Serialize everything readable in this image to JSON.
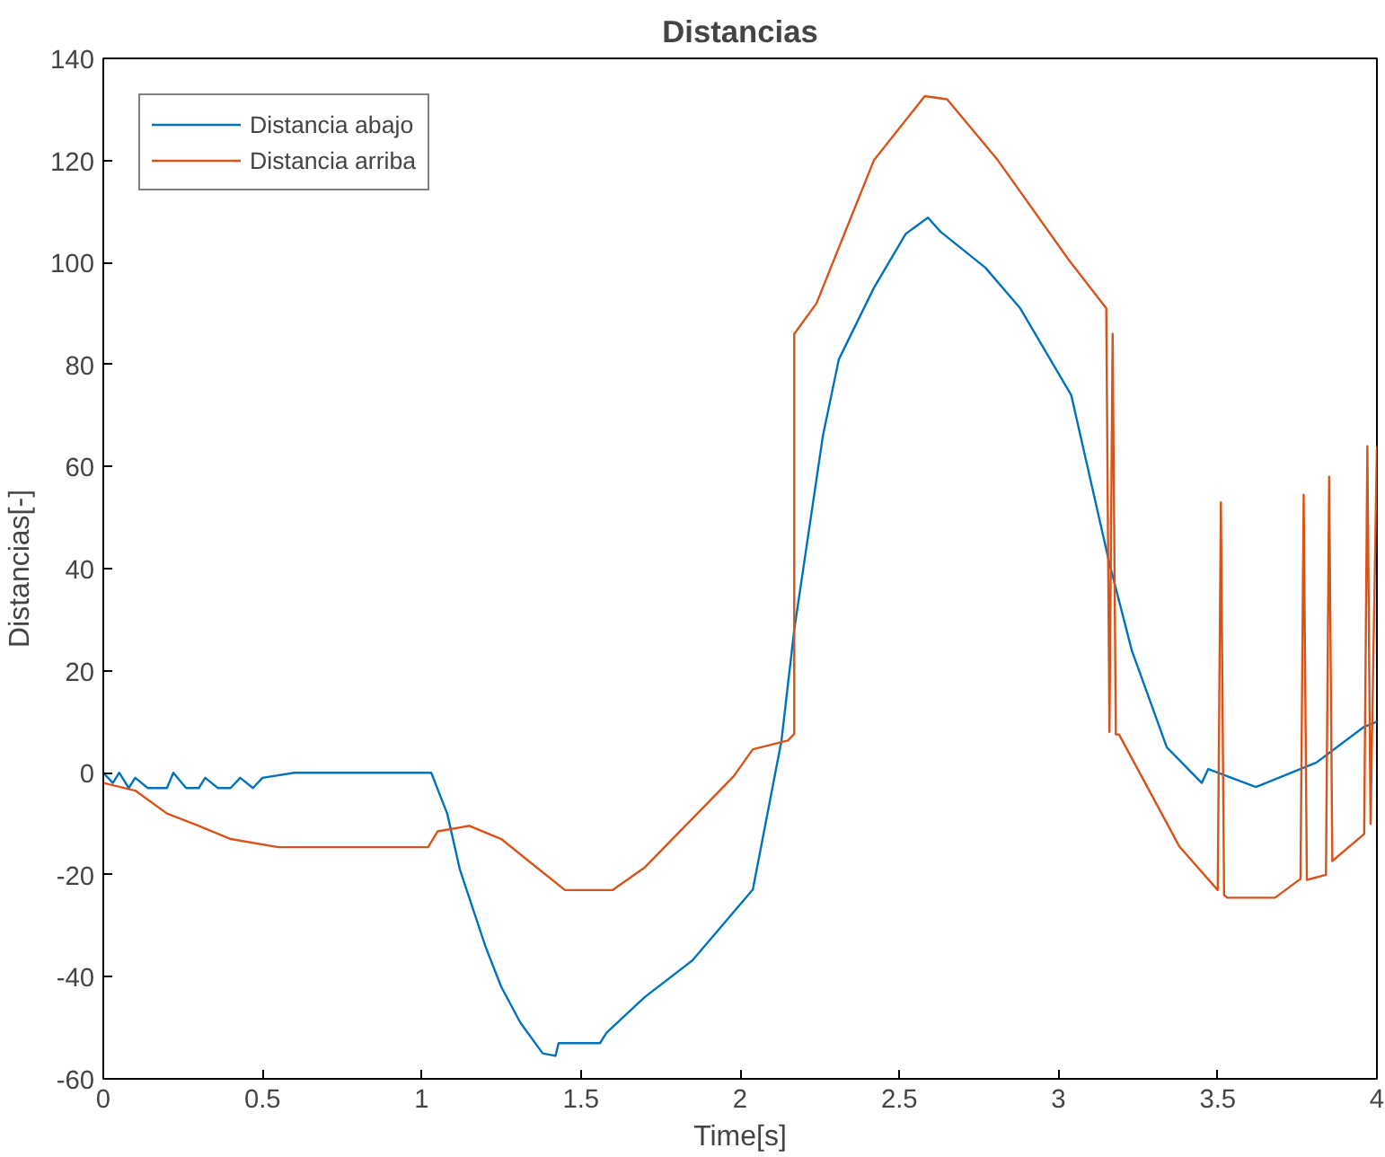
{
  "chart_data": {
    "type": "line",
    "title": "Distancias",
    "xlabel": "Time[s]",
    "ylabel": "Distancias[-]",
    "xlim": [
      0,
      4
    ],
    "ylim": [
      -60,
      140
    ],
    "xticks": [
      0,
      0.5,
      1,
      1.5,
      2,
      2.5,
      3,
      3.5,
      4
    ],
    "yticks": [
      -60,
      -40,
      -20,
      0,
      20,
      40,
      60,
      80,
      100,
      120,
      140
    ],
    "grid": false,
    "legend": "top left",
    "line_style": "solid",
    "marker": "none",
    "series": [
      {
        "name": "Distancia abajo",
        "color": "#0072bd",
        "x": [
          0,
          0.03,
          0.05,
          0.08,
          0.1,
          0.14,
          0.2,
          0.22,
          0.26,
          0.3,
          0.32,
          0.36,
          0.4,
          0.43,
          0.47,
          0.5,
          0.6,
          1.03,
          1.08,
          1.12,
          1.2,
          1.25,
          1.31,
          1.38,
          1.42,
          1.43,
          1.56,
          1.58,
          1.7,
          1.85,
          2.04,
          2.13,
          2.17,
          2.26,
          2.31,
          2.42,
          2.52,
          2.59,
          2.63,
          2.77,
          2.88,
          3.04,
          3.16,
          3.23,
          3.34,
          3.45,
          3.47,
          3.62,
          3.81,
          3.96,
          4.0
        ],
        "values": [
          0,
          -2,
          0,
          -3,
          -1,
          -3,
          -3,
          0,
          -3,
          -3,
          -1,
          -3,
          -3,
          -1,
          -3,
          -1,
          0,
          0,
          -8,
          -19,
          -34,
          -42,
          -49,
          -55,
          -55.5,
          -53,
          -53,
          -51,
          -44,
          -36.8,
          -22.9,
          6.3,
          28,
          66,
          81,
          95,
          105.6,
          108.8,
          106,
          99,
          91,
          74,
          41,
          24,
          5,
          -2,
          0.7,
          -2.8,
          2,
          9,
          10
        ]
      },
      {
        "name": "Distancia arriba",
        "color": "#d95319",
        "x": [
          0,
          0.1,
          0.2,
          0.3,
          0.4,
          0.55,
          1.02,
          1.05,
          1.15,
          1.25,
          1.35,
          1.45,
          1.6,
          1.7,
          1.85,
          1.98,
          2.04,
          2.15,
          2.17,
          2.17,
          2.24,
          2.42,
          2.58,
          2.65,
          2.81,
          3.03,
          3.15,
          3.16,
          3.17,
          3.18,
          3.19,
          3.38,
          3.5,
          3.51,
          3.52,
          3.53,
          3.68,
          3.76,
          3.77,
          3.78,
          3.84,
          3.85,
          3.86,
          3.96,
          3.97,
          3.98,
          4.0
        ],
        "values": [
          -2,
          -3.5,
          -8,
          -10.4,
          -13,
          -14.6,
          -14.6,
          -11.5,
          -10.4,
          -13,
          -18,
          -23,
          -23,
          -18.6,
          -9,
          -0.7,
          4.6,
          6.3,
          7.6,
          86,
          92,
          120,
          132.6,
          132,
          120,
          100.7,
          91,
          8,
          86,
          7.5,
          7.5,
          -14.5,
          -23,
          53,
          -24,
          -24.5,
          -24.5,
          -20.8,
          54.5,
          -21,
          -20,
          58,
          -17.3,
          -12,
          64,
          -10,
          64
        ]
      }
    ]
  }
}
